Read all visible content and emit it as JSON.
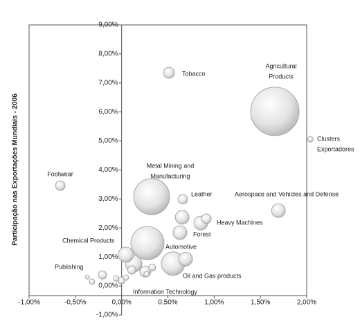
{
  "chart_data": {
    "type": "bubble",
    "y_label": "Participação nas Exportações Mundiais - 2006",
    "xlim": [
      -1,
      2
    ],
    "ylim": [
      -1,
      9
    ],
    "xticks": [
      {
        "value": -1,
        "label": "-1,00%"
      },
      {
        "value": -0.5,
        "label": "-0,50%"
      },
      {
        "value": 0,
        "label": "0,00%"
      },
      {
        "value": 0.5,
        "label": "0,50%"
      },
      {
        "value": 1,
        "label": "1,00%"
      },
      {
        "value": 1.5,
        "label": "1,50%"
      },
      {
        "value": 2,
        "label": "2,00%"
      }
    ],
    "yticks": [
      {
        "value": -1,
        "label": "-1,00%"
      },
      {
        "value": 0,
        "label": "0,00%"
      },
      {
        "value": 1,
        "label": "1,00%"
      },
      {
        "value": 2,
        "label": "2,00%"
      },
      {
        "value": 3,
        "label": "3,00%"
      },
      {
        "value": 4,
        "label": "4,00%"
      },
      {
        "value": 5,
        "label": "5,00%"
      },
      {
        "value": 6,
        "label": "6,00%"
      },
      {
        "value": 7,
        "label": "7,00%"
      },
      {
        "value": 8,
        "label": "8,00%"
      },
      {
        "value": 9,
        "label": "9,00%"
      }
    ],
    "grid": false,
    "series": [
      {
        "color": "#d9d9d9",
        "x": [
          1.656,
          0.511,
          2.04,
          -0.663,
          0.324,
          0.661,
          1.694,
          0.654,
          0.856,
          0.916,
          0.631,
          0.279,
          0.047,
          0.13,
          0.556,
          0.691,
          -0.207,
          -0.32,
          -0.37,
          0.0,
          -0.06,
          0.047,
          0.256,
          0.33,
          0.27,
          0.11
        ],
        "values": [
          6.02,
          7.35,
          5.06,
          3.46,
          3.08,
          2.99,
          2.6,
          2.37,
          2.17,
          2.32,
          1.84,
          1.48,
          1.08,
          0.77,
          0.77,
          0.93,
          0.38,
          0.15,
          0.31,
          0.19,
          0.26,
          0.29,
          0.5,
          0.64,
          0.41,
          0.55
        ],
        "sizes": [
          1225,
          64,
          16,
          49,
          676,
          49,
          100,
          100,
          100,
          49,
          100,
          576,
          121,
          144,
          289,
          100,
          36,
          16,
          9,
          25,
          16,
          16,
          64,
          25,
          16,
          36
        ]
      }
    ],
    "annotations": [
      [
        "Agricultural",
        "Products"
      ],
      [
        "Tobacco"
      ],
      [
        "Clusters",
        "Exportadores"
      ],
      [
        "Footwear"
      ],
      [
        "Metal Mining and",
        "Manufacturing"
      ],
      [
        "Leather"
      ],
      [
        "Aerospace and Vehicles and Defense"
      ],
      [
        "Heavy Machines"
      ],
      [
        "Forest"
      ],
      [
        "Chemical Products"
      ],
      [
        "Automotive"
      ],
      [
        "Publishing"
      ],
      [
        "Oil and Gas products"
      ],
      [
        "Information Technology"
      ]
    ]
  }
}
